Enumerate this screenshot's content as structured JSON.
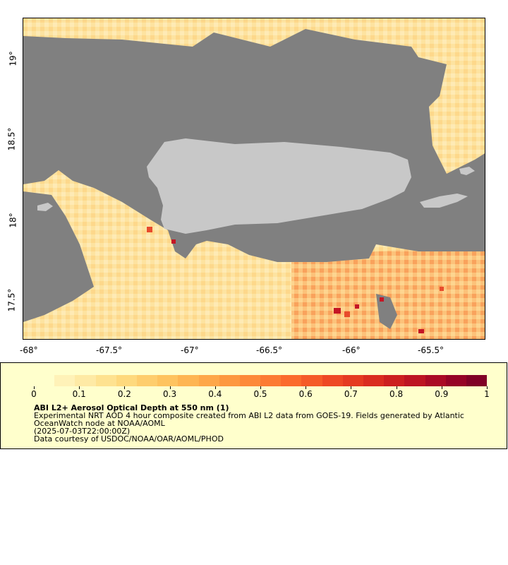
{
  "map": {
    "x_ticks": [
      "-68°",
      "-67.5°",
      "-67°",
      "-66.5°",
      "-66°",
      "-65.5°"
    ],
    "y_ticks": [
      "19°",
      "18.5°",
      "18°",
      "17.5°"
    ],
    "colors": {
      "land": "#c8c8c8",
      "no_data": "#808080",
      "ocean_low": "#fde49d",
      "ocean_mid": "#fcc977",
      "ocean_high": "#e84b2c",
      "ocean_max": "#c41625"
    }
  },
  "legend": {
    "ticks": [
      "0",
      "0.1",
      "0.2",
      "0.3",
      "0.4",
      "0.5",
      "0.6",
      "0.7",
      "0.8",
      "0.9",
      "1"
    ],
    "title": "ABI L2+ Aerosol Optical Depth at 550 nm (1)",
    "description_line1": "Experimental NRT AOD 4 hour composite created from ABI L2 data from GOES-19. Fields generated by Atlantic",
    "description_line2": "OceanWatch node at NOAA/AOML",
    "timestamp": "(2025-07-03T22:00:00Z)",
    "credit": "Data courtesy of USDOC/NOAA/OAR/AOML/PHOD"
  }
}
